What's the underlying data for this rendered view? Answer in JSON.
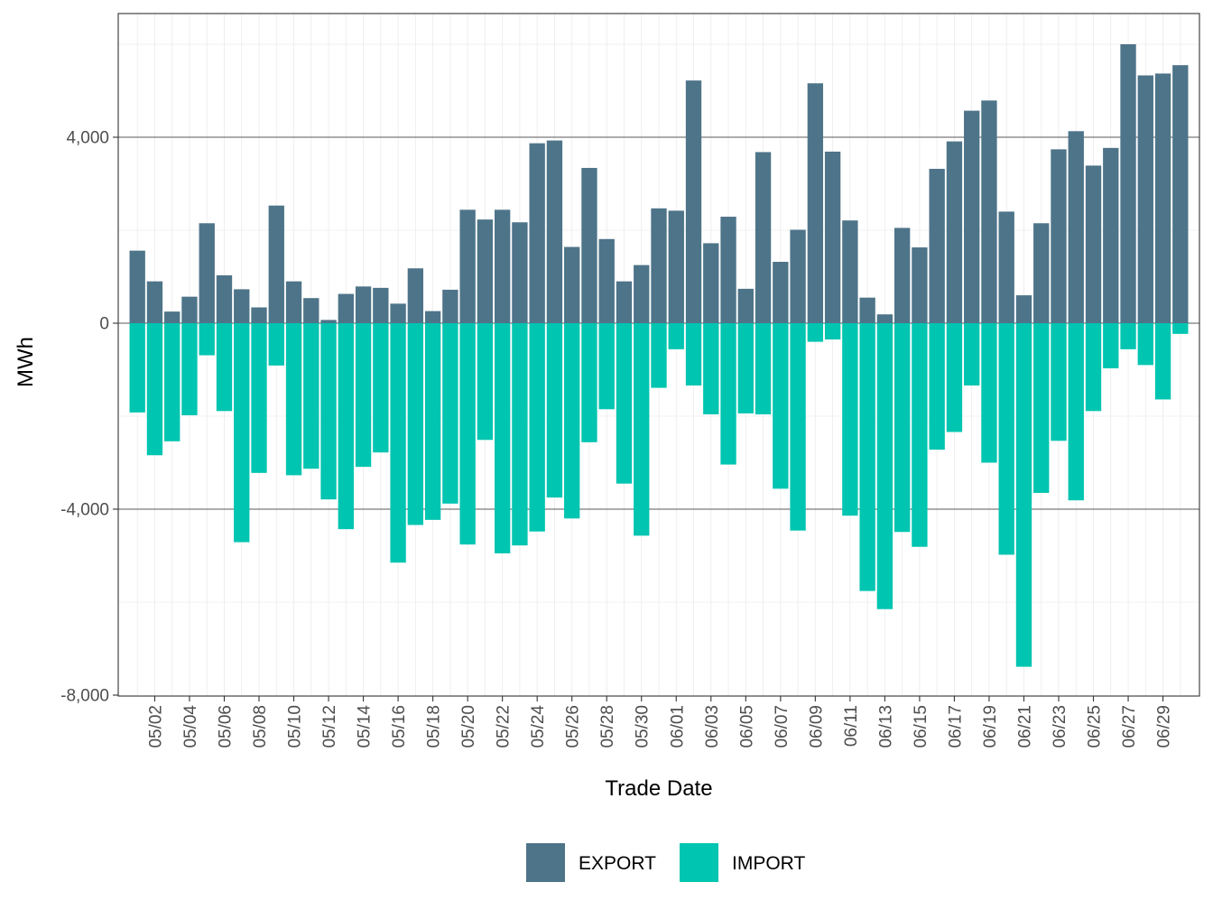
{
  "chart_data": {
    "type": "bar",
    "stacked": "diverging",
    "xlabel": "Trade Date",
    "ylabel": "MWh",
    "ylim": [
      -8000,
      6200
    ],
    "y_ticks": [
      4000,
      0,
      -4000,
      -8000
    ],
    "y_tick_labels": [
      "4,000",
      "0",
      "-4,000",
      "-8,000"
    ],
    "grid": true,
    "legend_position": "bottom",
    "x_tick_labels": [
      "05/02",
      "05/04",
      "05/06",
      "05/08",
      "05/10",
      "05/12",
      "05/14",
      "05/16",
      "05/18",
      "05/20",
      "05/22",
      "05/24",
      "05/26",
      "05/28",
      "05/30",
      "06/01",
      "06/03",
      "06/05",
      "06/07",
      "06/09",
      "06/11",
      "06/13",
      "06/15",
      "06/17",
      "06/19",
      "06/21",
      "06/23",
      "06/25",
      "06/27",
      "06/29"
    ],
    "categories": [
      "05/01",
      "05/02",
      "05/03",
      "05/04",
      "05/05",
      "05/06",
      "05/07",
      "05/08",
      "05/09",
      "05/10",
      "05/11",
      "05/12",
      "05/13",
      "05/14",
      "05/15",
      "05/16",
      "05/17",
      "05/18",
      "05/19",
      "05/20",
      "05/21",
      "05/22",
      "05/23",
      "05/24",
      "05/25",
      "05/26",
      "05/27",
      "05/28",
      "05/29",
      "05/30",
      "05/31",
      "06/01",
      "06/02",
      "06/03",
      "06/04",
      "06/05",
      "06/06",
      "06/07",
      "06/08",
      "06/09",
      "06/10",
      "06/11",
      "06/12",
      "06/13",
      "06/14",
      "06/15",
      "06/16",
      "06/17",
      "06/18",
      "06/19",
      "06/20",
      "06/21",
      "06/22",
      "06/23",
      "06/24",
      "06/25",
      "06/26",
      "06/27",
      "06/28",
      "06/29",
      "06/30"
    ],
    "series": [
      {
        "name": "EXPORT",
        "color": "#4e7489",
        "values": [
          1560,
          900,
          250,
          570,
          2150,
          1030,
          730,
          340,
          2530,
          900,
          540,
          70,
          630,
          790,
          760,
          420,
          1180,
          260,
          720,
          2440,
          2230,
          2440,
          2170,
          3870,
          3930,
          1640,
          3340,
          1810,
          900,
          1250,
          2470,
          2420,
          5220,
          1720,
          2290,
          740,
          3680,
          1320,
          2010,
          5160,
          3690,
          2210,
          550,
          190,
          2050,
          1630,
          3320,
          3910,
          4570,
          4790,
          2400,
          600,
          2150,
          3740,
          4130,
          3390,
          3770,
          6000,
          5330,
          5370,
          5550
        ]
      },
      {
        "name": "IMPORT",
        "color": "#00c5b0",
        "values": [
          -1920,
          -2840,
          -2540,
          -1980,
          -690,
          -1890,
          -4710,
          -3220,
          -910,
          -3270,
          -3130,
          -3790,
          -4430,
          -3090,
          -2780,
          -5150,
          -4340,
          -4230,
          -3880,
          -4760,
          -2510,
          -4950,
          -4780,
          -4480,
          -3750,
          -4200,
          -2560,
          -1850,
          -3450,
          -4570,
          -1390,
          -560,
          -1340,
          -1960,
          -3040,
          -1940,
          -1960,
          -3560,
          -4460,
          -400,
          -350,
          -4140,
          -5760,
          -6150,
          -4490,
          -4810,
          -2720,
          -2340,
          -1340,
          -3000,
          -4980,
          -7390,
          -3650,
          -2530,
          -3810,
          -1890,
          -970,
          -560,
          -900,
          -1640,
          -230
        ]
      }
    ]
  }
}
